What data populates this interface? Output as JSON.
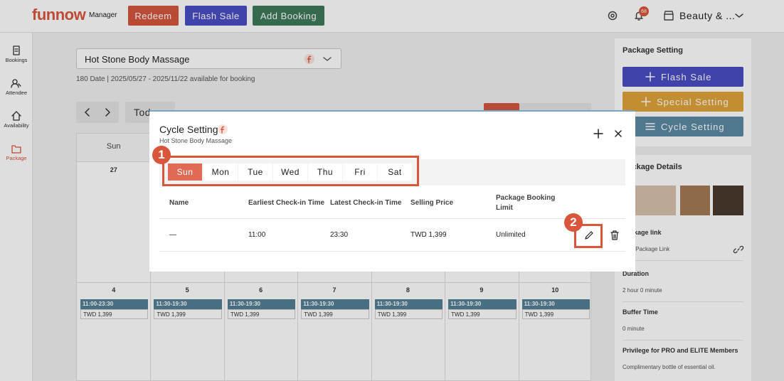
{
  "header": {
    "logo": "funnow",
    "logo_suffix": "Manager",
    "buttons": [
      "Redeem",
      "Flash Sale",
      "Add Booking"
    ],
    "notification_count": "68",
    "store": "Beauty & ..."
  },
  "sidebar": [
    "Bookings",
    "Attendee",
    "Availability",
    "Package"
  ],
  "main": {
    "package_select": "Hot Stone Body Massage",
    "availability": "180 Date | 2025/05/27 - 2025/11/22 available for booking",
    "today_button": "Today",
    "weekday_header": "Sun",
    "first_week_date": "27",
    "week": [
      {
        "date": "4",
        "time": "11:00-23:30",
        "price": "TWD 1,399"
      },
      {
        "date": "5",
        "time": "11:30-19:30",
        "price": "TWD 1,399"
      },
      {
        "date": "6",
        "time": "11:30-19:30",
        "price": "TWD 1,399"
      },
      {
        "date": "7",
        "time": "11:30-19:30",
        "price": "TWD 1,399"
      },
      {
        "date": "8",
        "time": "11:30-19:30",
        "price": "TWD 1,399"
      },
      {
        "date": "9",
        "time": "11:30-19:30",
        "price": "TWD 1,399"
      },
      {
        "date": "10",
        "time": "11:30-19:30",
        "price": "TWD 1,399"
      }
    ]
  },
  "right_panel": {
    "title": "Package Setting",
    "buttons": [
      "Flash Sale",
      "Special Setting",
      "Cycle Setting"
    ],
    "details_title": "Package Details",
    "fields": [
      {
        "label": "Package link",
        "value": "Now Package Link"
      },
      {
        "label": "Duration",
        "value": "2 hour 0 minute"
      },
      {
        "label": "Buffer Time",
        "value": "0 minute"
      },
      {
        "label": "Privilege for PRO and ELITE Members",
        "value": "Complimentary bottle of essential oil."
      }
    ]
  },
  "modal": {
    "title": "Cycle Setting",
    "subtitle": "Hot Stone Body Massage",
    "days": [
      "Sun",
      "Mon",
      "Tue",
      "Wed",
      "Thu",
      "Fri",
      "Sat"
    ],
    "columns": [
      "Name",
      "Earliest Check-in Time",
      "Latest Check-in Time",
      "Selling Price",
      "Package Booking Limit"
    ],
    "rows": [
      [
        "—",
        "11:00",
        "23:30",
        "TWD 1,399",
        "Unlimited"
      ]
    ]
  },
  "annotations": [
    "1",
    "2"
  ]
}
